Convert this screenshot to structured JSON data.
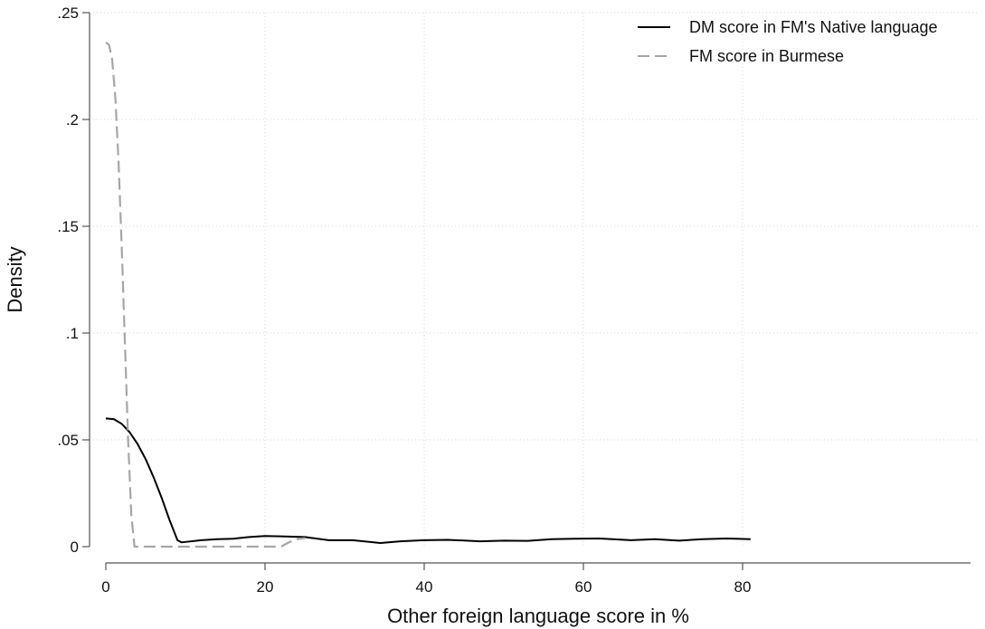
{
  "chart_data": {
    "type": "line",
    "title": "",
    "xlabel": "Other foreign language score in %",
    "ylabel": "Density",
    "xlim": [
      0,
      81
    ],
    "ylim": [
      0,
      0.25
    ],
    "x_ticks": [
      {
        "value": 0,
        "label": "0"
      },
      {
        "value": 20,
        "label": "20"
      },
      {
        "value": 40,
        "label": "40"
      },
      {
        "value": 60,
        "label": "60"
      },
      {
        "value": 80,
        "label": "80"
      }
    ],
    "y_ticks": [
      {
        "value": 0,
        "label": "0"
      },
      {
        "value": 0.05,
        "label": ".05"
      },
      {
        "value": 0.1,
        "label": ".1"
      },
      {
        "value": 0.15,
        "label": ".15"
      },
      {
        "value": 0.2,
        "label": ".2"
      },
      {
        "value": 0.25,
        "label": ".25"
      }
    ],
    "grid": true,
    "legend_position": "top-right",
    "series": [
      {
        "name": "DM score in FM's Native language",
        "color": "#000000",
        "dash": "solid",
        "points": [
          [
            0,
            0.06
          ],
          [
            1,
            0.0597
          ],
          [
            2,
            0.0575
          ],
          [
            3,
            0.0535
          ],
          [
            4,
            0.048
          ],
          [
            5,
            0.041
          ],
          [
            6,
            0.0325
          ],
          [
            7,
            0.023
          ],
          [
            8,
            0.0125
          ],
          [
            9,
            0.003
          ],
          [
            9.5,
            0.002
          ],
          [
            10,
            0.0022
          ],
          [
            12,
            0.003
          ],
          [
            14,
            0.0035
          ],
          [
            16,
            0.0037
          ],
          [
            18,
            0.0045
          ],
          [
            20,
            0.005
          ],
          [
            22,
            0.0048
          ],
          [
            25,
            0.0045
          ],
          [
            28,
            0.003
          ],
          [
            31,
            0.003
          ],
          [
            34.5,
            0.0017
          ],
          [
            37,
            0.0025
          ],
          [
            40,
            0.003
          ],
          [
            43,
            0.0032
          ],
          [
            47,
            0.0025
          ],
          [
            50,
            0.0028
          ],
          [
            53,
            0.0027
          ],
          [
            56,
            0.0035
          ],
          [
            59,
            0.0037
          ],
          [
            62,
            0.0038
          ],
          [
            66,
            0.003
          ],
          [
            69,
            0.0035
          ],
          [
            72,
            0.0028
          ],
          [
            75,
            0.0035
          ],
          [
            78,
            0.0038
          ],
          [
            81,
            0.0035
          ]
        ]
      },
      {
        "name": "FM score in Burmese",
        "color": "#a6a6a6",
        "dash": "dashed",
        "points": [
          [
            0,
            0.236
          ],
          [
            0.4,
            0.235
          ],
          [
            0.8,
            0.228
          ],
          [
            1.2,
            0.21
          ],
          [
            1.6,
            0.18
          ],
          [
            2.0,
            0.14
          ],
          [
            2.4,
            0.095
          ],
          [
            2.8,
            0.05
          ],
          [
            3.2,
            0.015
          ],
          [
            3.6,
            0.0
          ],
          [
            10,
            0.0
          ],
          [
            15,
            0.0
          ],
          [
            20,
            0.0
          ],
          [
            22,
            0.0
          ],
          [
            23,
            0.002
          ],
          [
            24,
            0.0035
          ],
          [
            25,
            0.004
          ]
        ]
      }
    ]
  }
}
